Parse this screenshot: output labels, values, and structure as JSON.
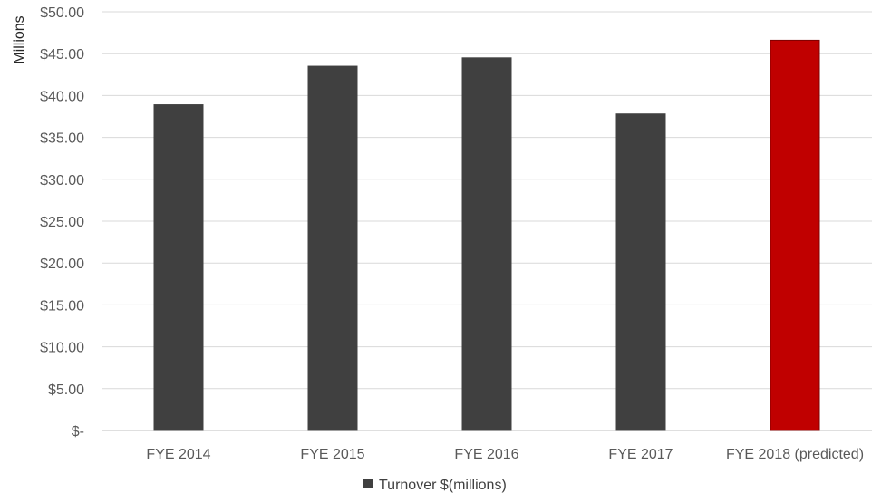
{
  "chart_data": {
    "type": "bar",
    "title": "",
    "xlabel": "",
    "ylabel": "Millions",
    "categories": [
      "FYE 2014",
      "FYE 2015",
      "FYE 2016",
      "FYE 2017",
      "FYE 2018 (predicted)"
    ],
    "series": [
      {
        "name": "Turnover $(millions)",
        "values": [
          38.9,
          43.5,
          44.5,
          37.8,
          46.6
        ]
      }
    ],
    "colors": [
      "#404040",
      "#404040",
      "#404040",
      "#404040",
      "#c00000"
    ],
    "bar_border_colors": [
      "#404040",
      "#404040",
      "#404040",
      "#404040",
      "#7f0000"
    ],
    "legend_color": "#404040",
    "ylim": [
      0,
      50
    ],
    "yticks": [
      0,
      5,
      10,
      15,
      20,
      25,
      30,
      35,
      40,
      45,
      50
    ],
    "ytick_labels": [
      "$-",
      "$5.00",
      "$10.00",
      "$15.00",
      "$20.00",
      "$25.00",
      "$30.00",
      "$35.00",
      "$40.00",
      "$45.00",
      "$50.00"
    ],
    "grid": true,
    "legend_position": "bottom"
  }
}
